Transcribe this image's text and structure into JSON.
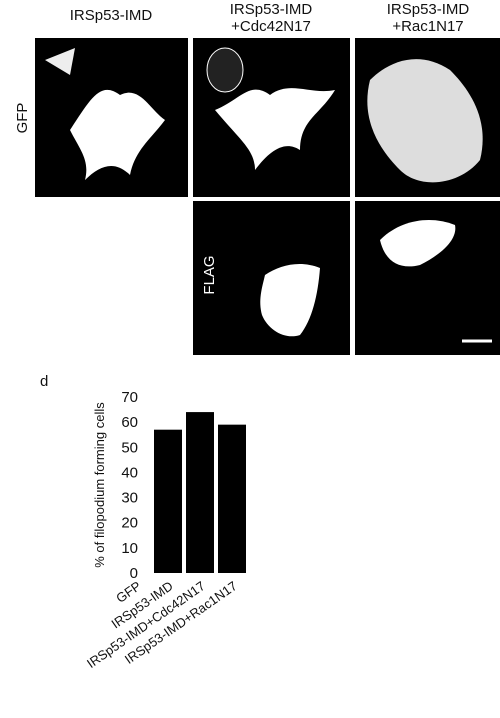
{
  "figure": {
    "column_headers": [
      [
        "IRSp53-IMD"
      ],
      [
        "IRSp53-IMD",
        "+Cdc42N17"
      ],
      [
        "IRSp53-IMD",
        "+Rac1N17"
      ]
    ],
    "row_labels": [
      "GFP",
      "FLAG"
    ]
  },
  "chart_data": {
    "type": "bar",
    "panel_label": "d",
    "y_label": "% of filopodium forming cells",
    "categories": [
      "GFP",
      "IRSp53-IMD",
      "IRSp53-IMD+Cdc42N17",
      "IRSp53-IMD+Rac1N17"
    ],
    "values": [
      0,
      57,
      64,
      59
    ],
    "color": "#000000",
    "ylim": [
      0,
      70
    ],
    "yticks": [
      0,
      10,
      20,
      30,
      40,
      50,
      60,
      70
    ]
  }
}
